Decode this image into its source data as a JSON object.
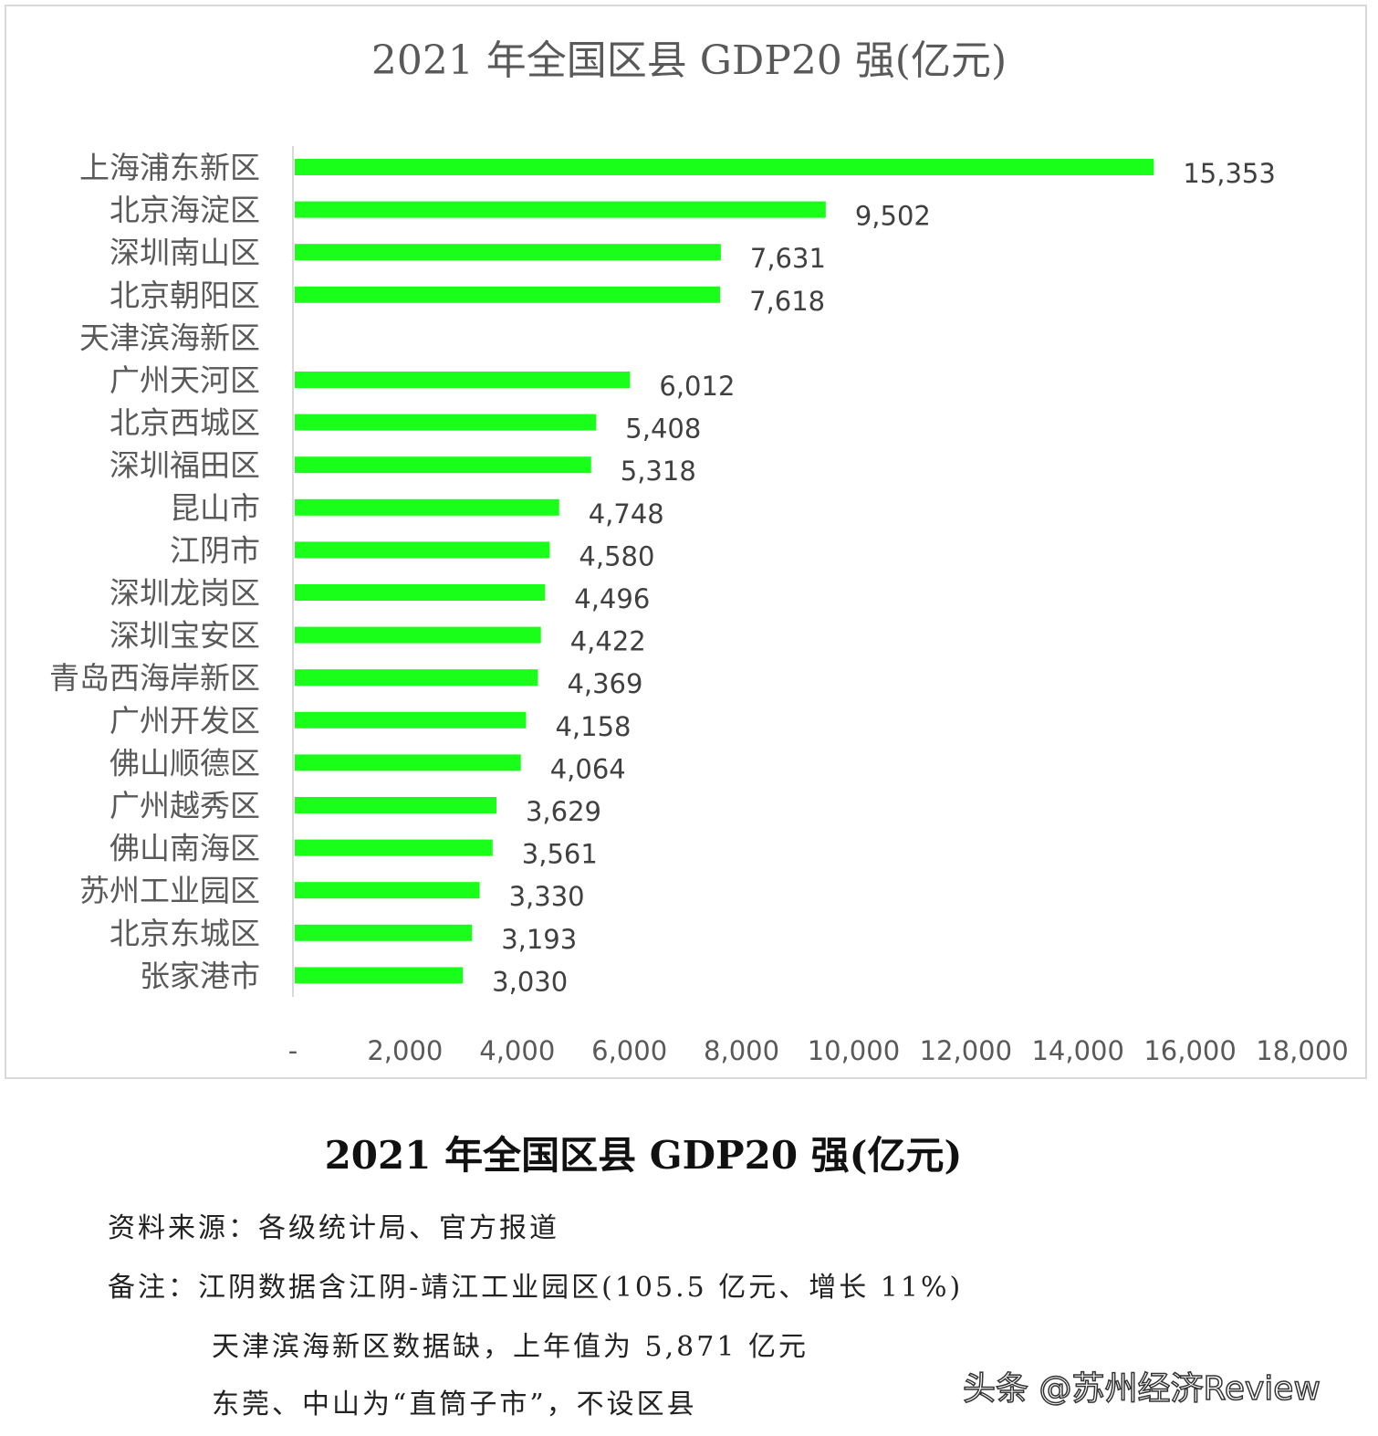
{
  "chart_data": {
    "type": "bar",
    "orientation": "horizontal",
    "title": "2021 年全国区县 GDP20 强(亿元)",
    "categories": [
      "上海浦东新区",
      "北京海淀区",
      "深圳南山区",
      "北京朝阳区",
      "天津滨海新区",
      "广州天河区",
      "北京西城区",
      "深圳福田区",
      "昆山市",
      "江阴市",
      "深圳龙岗区",
      "深圳宝安区",
      "青岛西海岸新区",
      "广州开发区",
      "佛山顺德区",
      "广州越秀区",
      "佛山南海区",
      "苏州工业园区",
      "北京东城区",
      "张家港市"
    ],
    "values": [
      15353,
      9502,
      7631,
      7618,
      null,
      6012,
      5408,
      5318,
      4748,
      4580,
      4496,
      4422,
      4369,
      4158,
      4064,
      3629,
      3561,
      3330,
      3193,
      3030
    ],
    "value_labels": [
      "15,353",
      "9,502",
      "7,631",
      "7,618",
      "",
      "6,012",
      "5,408",
      "5,318",
      "4,748",
      "4,580",
      "4,496",
      "4,422",
      "4,369",
      "4,158",
      "4,064",
      "3,629",
      "3,561",
      "3,330",
      "3,193",
      "3,030"
    ],
    "xlim": [
      0,
      18000
    ],
    "x_ticks": [
      "-",
      "2,000",
      "4,000",
      "6,000",
      "8,000",
      "10,000",
      "12,000",
      "14,000",
      "16,000",
      "18,000"
    ],
    "grid": false,
    "legend": "none",
    "bar_color": "#1aff1a"
  },
  "caption": {
    "title": "2021 年全国区县 GDP20 强(亿元)",
    "source": "资料来源：各级统计局、官方报道",
    "note1": "备注：江阴数据含江阴-靖江工业园区(105.5 亿元、增长 11%)",
    "note2": "天津滨海新区数据缺，上年值为 5,871 亿元",
    "note3": "东莞、中山为“直筒子市”，不设区县"
  },
  "watermark": "头条 @苏州经济Review"
}
